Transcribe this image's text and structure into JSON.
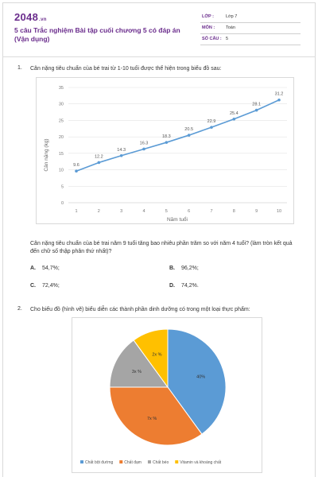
{
  "header": {
    "logo_text": "2048",
    "logo_suffix": ".vn",
    "title": "5 câu Trắc nghiệm Bài tập cuối chương 5 có đáp án (Vận dụng)",
    "meta": [
      {
        "key": "LỚP :",
        "value": "Lớp 7"
      },
      {
        "key": "MÔN :",
        "value": "Toán"
      },
      {
        "key": "SỐ CÂU :",
        "value": "5"
      }
    ]
  },
  "questions": [
    {
      "number": "1.",
      "text": "Cân nặng tiêu chuẩn của bé trai từ 1-10 tuổi được thể hiện trong biểu đồ sau:",
      "question": "Cân nặng tiêu chuẩn của bé trai năm 9 tuổi tăng bao nhiêu phần trăm so với năm 4 tuổi? (làm tròn kết quả đến chữ số thập phân thứ nhất)?",
      "options": [
        {
          "label": "A.",
          "text": "54,7%;"
        },
        {
          "label": "B.",
          "text": "96,2%;"
        },
        {
          "label": "C.",
          "text": "72,4%;"
        },
        {
          "label": "D.",
          "text": "74,2%."
        }
      ]
    },
    {
      "number": "2.",
      "text": "Cho biểu đồ (hình vẽ) biểu diễn các thành phần dinh dưỡng có trong một loại thực phẩm:"
    }
  ],
  "chart_data": [
    {
      "type": "line",
      "x": [
        1,
        2,
        3,
        4,
        5,
        6,
        7,
        8,
        9,
        10
      ],
      "values": [
        9.6,
        12.2,
        14.3,
        16.3,
        18.3,
        20.5,
        22.9,
        25.4,
        28.1,
        31.2
      ],
      "data_labels": [
        "9.6",
        "12.2",
        "14.3",
        "16.3",
        "18.3",
        "20.5",
        "22.9",
        "25.4",
        "28.1",
        "31.2"
      ],
      "x_ticks": [
        "1",
        "2",
        "3",
        "4",
        "5",
        "6",
        "7",
        "8",
        "9",
        "10"
      ],
      "y_ticks": [
        "0",
        "5",
        "10",
        "15",
        "20",
        "25",
        "30",
        "35"
      ],
      "xlabel": "Năm tuổi",
      "ylabel": "Cân nặng (kg)",
      "ylim": [
        0,
        35
      ],
      "grid": true,
      "color": "#5b9bd5"
    },
    {
      "type": "pie",
      "slices": [
        {
          "name": "Chất bột đường",
          "value": 40,
          "label": "40%",
          "color": "#5b9bd5"
        },
        {
          "name": "Chất đạm",
          "value": 35,
          "label": "7x %",
          "color": "#ed7d31"
        },
        {
          "name": "Chất béo",
          "value": 15,
          "label": "3x %",
          "color": "#a5a5a5"
        },
        {
          "name": "Vitamin và khoáng chất",
          "value": 10,
          "label": "2x %",
          "color": "#ffc000"
        }
      ],
      "legend_position": "bottom"
    }
  ]
}
